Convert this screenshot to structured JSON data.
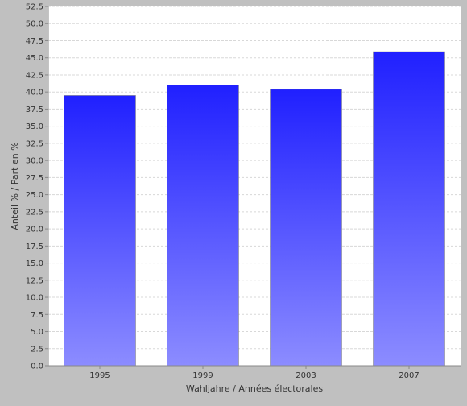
{
  "chart_data": {
    "type": "bar",
    "categories": [
      "1995",
      "1999",
      "2003",
      "2007"
    ],
    "series": [
      {
        "values": [
          39.5,
          41.0,
          40.4,
          45.9
        ]
      }
    ],
    "xlabel": "Wahljahre / Années électorales",
    "ylabel": "Anteil % / Part en %",
    "ylim": [
      0,
      52.5
    ],
    "yticks": [
      "0.0",
      "2.5",
      "5.0",
      "7.5",
      "10.0",
      "12.5",
      "15.0",
      "17.5",
      "20.0",
      "22.5",
      "25.0",
      "27.5",
      "30.0",
      "32.5",
      "35.0",
      "37.5",
      "40.0",
      "42.5",
      "45.0",
      "47.5",
      "50.0",
      "52.5"
    ],
    "grid": true,
    "legend": "none",
    "colors": {
      "outer_background": "#c0c0c0",
      "plot_background": "#ffffff",
      "bar_top": "#2020ff",
      "bar_bottom": "#8c8cff",
      "gridline": "#d8d8d8",
      "axis": "#888888",
      "text": "#333333"
    }
  }
}
